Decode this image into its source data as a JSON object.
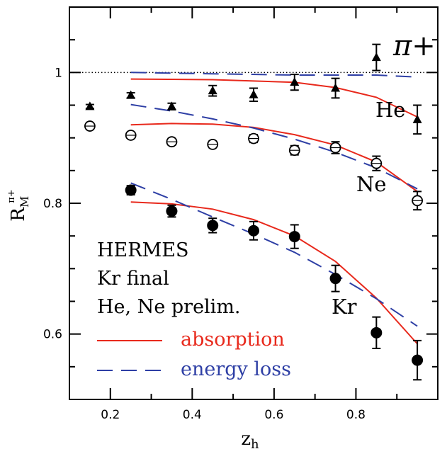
{
  "chart_data": {
    "type": "scatter",
    "title": "",
    "xlabel": "z",
    "xlabel_sub": "h",
    "ylabel": "R",
    "ylabel_sub": "M",
    "ylabel_sup": "π+",
    "xlim": [
      0.1,
      1.0
    ],
    "ylim": [
      0.5,
      1.1
    ],
    "x_major_ticks": [
      0.2,
      0.4,
      0.6,
      0.8
    ],
    "x_minor_ticks": [
      0.1,
      0.3,
      0.5,
      0.7,
      0.9,
      1.0
    ],
    "y_major_ticks": [
      0.6,
      0.8,
      1.0
    ],
    "y_minor_ticks": [
      0.5,
      0.55,
      0.65,
      0.7,
      0.75,
      0.85,
      0.9,
      0.95,
      1.05,
      1.1
    ],
    "x_tick_labels": [
      "0.2",
      "0.4",
      "0.6",
      "0.8"
    ],
    "y_tick_labels": [
      "0.6",
      "0.8",
      "1"
    ],
    "reference_line": 1.0,
    "particle_label": "π+",
    "experiment_text": [
      "HERMES",
      "Kr final",
      "He, Ne prelim."
    ],
    "legend": {
      "placement": "bottom-left",
      "items": [
        {
          "label": "absorption",
          "style": "solid",
          "color": "#e8291c"
        },
        {
          "label": "energy loss",
          "style": "dashed",
          "color": "#2e3fa5"
        }
      ]
    },
    "data_series": [
      {
        "name": "He",
        "marker": "triangle",
        "x": [
          0.15,
          0.25,
          0.35,
          0.45,
          0.55,
          0.65,
          0.75,
          0.85,
          0.95
        ],
        "y": [
          0.948,
          0.965,
          0.948,
          0.972,
          0.966,
          0.985,
          0.976,
          1.023,
          0.928
        ],
        "err": [
          0.003,
          0.004,
          0.005,
          0.008,
          0.01,
          0.012,
          0.015,
          0.02,
          0.022
        ]
      },
      {
        "name": "Ne",
        "marker": "open-circle",
        "x": [
          0.15,
          0.25,
          0.35,
          0.45,
          0.55,
          0.65,
          0.75,
          0.85,
          0.95
        ],
        "y": [
          0.918,
          0.904,
          0.894,
          0.89,
          0.899,
          0.881,
          0.885,
          0.861,
          0.804
        ],
        "err": [
          0.004,
          0.004,
          0.005,
          0.005,
          0.006,
          0.007,
          0.009,
          0.011,
          0.014
        ]
      },
      {
        "name": "Kr",
        "marker": "filled-circle",
        "x": [
          0.25,
          0.35,
          0.45,
          0.55,
          0.65,
          0.75,
          0.85,
          0.95
        ],
        "y": [
          0.82,
          0.788,
          0.766,
          0.758,
          0.749,
          0.685,
          0.602,
          0.56
        ],
        "err": [
          0.007,
          0.009,
          0.011,
          0.014,
          0.018,
          0.02,
          0.024,
          0.03
        ]
      }
    ],
    "model_curves": [
      {
        "target": "He",
        "model": "absorption",
        "x": [
          0.25,
          0.45,
          0.65,
          0.75,
          0.85,
          0.95
        ],
        "y": [
          0.99,
          0.989,
          0.985,
          0.977,
          0.962,
          0.932
        ]
      },
      {
        "target": "He",
        "model": "energy loss",
        "x": [
          0.25,
          0.45,
          0.65,
          0.85,
          0.95
        ],
        "y": [
          1.0,
          0.998,
          0.996,
          0.996,
          0.993
        ]
      },
      {
        "target": "Ne",
        "model": "absorption",
        "x": [
          0.25,
          0.35,
          0.45,
          0.55,
          0.65,
          0.75,
          0.85,
          0.95
        ],
        "y": [
          0.92,
          0.922,
          0.921,
          0.916,
          0.905,
          0.889,
          0.863,
          0.818
        ]
      },
      {
        "target": "Ne",
        "model": "energy loss",
        "x": [
          0.25,
          0.35,
          0.45,
          0.55,
          0.65,
          0.75,
          0.85,
          0.95
        ],
        "y": [
          0.951,
          0.941,
          0.929,
          0.915,
          0.898,
          0.878,
          0.854,
          0.822
        ]
      },
      {
        "target": "Kr",
        "model": "absorption",
        "x": [
          0.25,
          0.35,
          0.45,
          0.55,
          0.65,
          0.75,
          0.85,
          0.95
        ],
        "y": [
          0.802,
          0.799,
          0.791,
          0.775,
          0.75,
          0.711,
          0.655,
          0.585
        ]
      },
      {
        "target": "Kr",
        "model": "energy loss",
        "x": [
          0.25,
          0.35,
          0.45,
          0.55,
          0.65,
          0.75,
          0.85,
          0.95
        ],
        "y": [
          0.831,
          0.806,
          0.779,
          0.753,
          0.725,
          0.691,
          0.654,
          0.612
        ]
      }
    ]
  }
}
